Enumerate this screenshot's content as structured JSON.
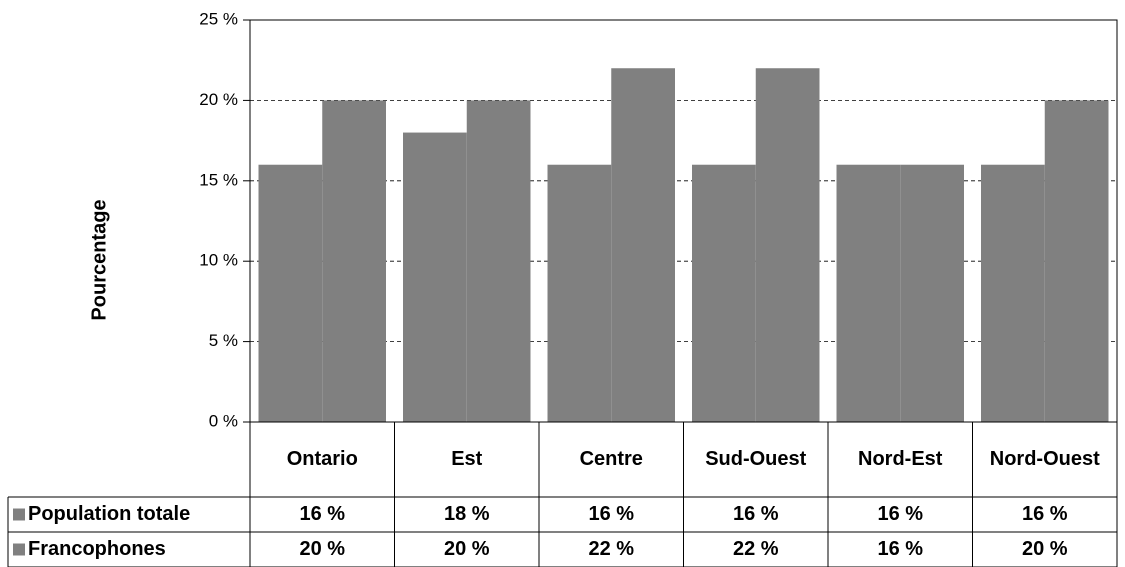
{
  "chart_data": {
    "type": "bar",
    "y_label": "Pourcentage",
    "categories": [
      "Ontario",
      "Est",
      "Centre",
      "Sud-Ouest",
      "Nord-Est",
      "Nord-Ouest"
    ],
    "series": [
      {
        "name": "Population totale",
        "color": "#808080",
        "values": [
          16,
          18,
          16,
          16,
          16,
          16
        ],
        "value_labels": [
          "16 %",
          "18 %",
          "16 %",
          "16 %",
          "16 %",
          "16 %"
        ]
      },
      {
        "name": "Francophones",
        "color": "#808080",
        "values": [
          20,
          20,
          22,
          22,
          16,
          20
        ],
        "value_labels": [
          "20 %",
          "20 %",
          "22 %",
          "22 %",
          "16 %",
          "20 %"
        ]
      }
    ],
    "ylim": [
      0,
      25
    ],
    "yticks": [
      {
        "value": 0,
        "label": "0 %"
      },
      {
        "value": 5,
        "label": "5 %"
      },
      {
        "value": 10,
        "label": "10 %"
      },
      {
        "value": 15,
        "label": "15 %"
      },
      {
        "value": 20,
        "label": "20 %"
      },
      {
        "value": 25,
        "label": "25 %"
      }
    ],
    "grid": true
  }
}
